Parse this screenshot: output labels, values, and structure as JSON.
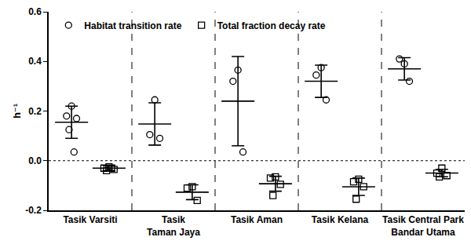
{
  "chart_data": {
    "type": "scatter",
    "categories": [
      "Tasik Varsiti",
      "Tasik\nTaman Jaya",
      "Tasik Aman",
      "Tasik Kelana",
      "Tasik Central Park\nBandar Utama"
    ],
    "y_label": "h⁻¹",
    "ylim": [
      -0.2,
      0.6
    ],
    "yticks": [
      {
        "value": -0.2,
        "label": "-0.2"
      },
      {
        "value": 0,
        "label": "0.0"
      },
      {
        "value": 0.2,
        "label": "0.2"
      },
      {
        "value": 0.4,
        "label": "0.4"
      },
      {
        "value": 0.6,
        "label": "0.6"
      }
    ],
    "grid": false,
    "legend": "upper left",
    "series": [
      {
        "name": "Habitat transition rate",
        "color": "#000000",
        "marker": "circle-open",
        "values": [
          [
            0.22,
            0.18,
            0.17,
            0.125,
            0.035
          ],
          [
            0.245,
            0.105,
            0.09
          ],
          [
            0.365,
            0.32,
            0.035
          ],
          [
            0.375,
            0.345,
            0.245
          ],
          [
            0.39,
            0.41,
            0.32
          ]
        ],
        "mean": [
          0.155,
          0.148,
          0.24,
          0.32,
          0.37
        ],
        "sd": [
          0.065,
          0.085,
          0.18,
          0.065,
          0.045
        ]
      },
      {
        "name": "Total fraction decay rate",
        "color": "#000000",
        "marker": "square-open",
        "values": [
          [
            -0.025,
            -0.03,
            -0.035,
            -0.04,
            -0.03
          ],
          [
            -0.105,
            -0.11,
            -0.16
          ],
          [
            -0.065,
            -0.07,
            -0.095,
            -0.14
          ],
          [
            -0.075,
            -0.085,
            -0.105,
            -0.155
          ],
          [
            -0.03,
            -0.05,
            -0.06,
            -0.065
          ]
        ],
        "mean": [
          -0.03,
          -0.127,
          -0.093,
          -0.105,
          -0.05
        ],
        "sd": [
          0.01,
          0.03,
          0.03,
          0.035,
          0.015
        ]
      }
    ]
  }
}
